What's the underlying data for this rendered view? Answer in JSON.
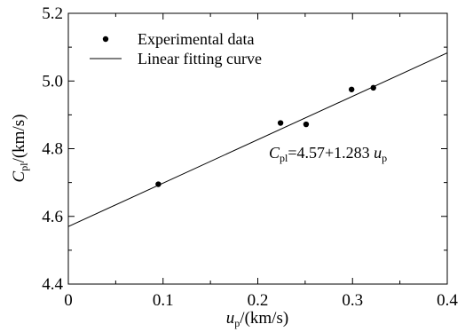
{
  "chart_data": {
    "type": "scatter",
    "xlabel": {
      "main": "u",
      "sub": "p",
      "unit": "/(km/s)"
    },
    "ylabel": {
      "main": "C",
      "sub": "pl",
      "unit": "/(km/s)"
    },
    "xlim": [
      0,
      0.4
    ],
    "ylim": [
      4.4,
      5.2
    ],
    "x_ticks": [
      0,
      0.1,
      0.2,
      0.3,
      0.4
    ],
    "x_tick_labels": [
      "0",
      "0.1",
      "0.2",
      "0.3",
      "0.4"
    ],
    "y_ticks": [
      4.4,
      4.6,
      4.8,
      5.0,
      5.2
    ],
    "y_tick_labels": [
      "4.4",
      "4.6",
      "4.8",
      "5.0",
      "5.2"
    ],
    "grid": false,
    "legend_position": "top-left",
    "series": [
      {
        "name": "Experimental data",
        "type": "scatter",
        "x": [
          0.095,
          0.224,
          0.251,
          0.299,
          0.322
        ],
        "y": [
          4.695,
          4.876,
          4.872,
          4.975,
          4.98
        ]
      },
      {
        "name": "Linear fitting curve",
        "type": "line",
        "intercept": 4.57,
        "slope": 1.283,
        "x": [
          0,
          0.4
        ],
        "y": [
          4.57,
          5.0832
        ]
      }
    ],
    "annotation": {
      "main": "C",
      "sub": "pl",
      "mid": "=4.57+1.283 ",
      "var": "u",
      "var_sub": "p",
      "x": 0.225,
      "y": 4.755
    }
  }
}
